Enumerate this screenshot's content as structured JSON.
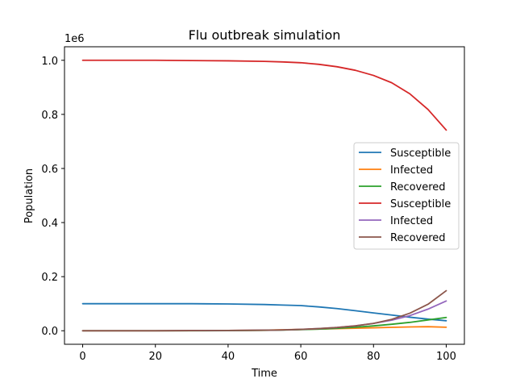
{
  "chart_data": {
    "type": "line",
    "title": "Flu outbreak simulation",
    "xlabel": "Time",
    "ylabel": "Population",
    "y_offset_label": "1e6",
    "xlim": [
      -5,
      105
    ],
    "ylim": [
      -0.05,
      1.05
    ],
    "x_scale_factor": 1,
    "y_scale_factor": 1000000,
    "x_ticks": [
      0,
      20,
      40,
      60,
      80,
      100
    ],
    "x_tick_labels": [
      "0",
      "20",
      "40",
      "60",
      "80",
      "100"
    ],
    "y_ticks": [
      0.0,
      0.2,
      0.4,
      0.6,
      0.8,
      1.0
    ],
    "y_tick_labels": [
      "0.0",
      "0.2",
      "0.4",
      "0.6",
      "0.8",
      "1.0"
    ],
    "grid": false,
    "legend_position": "center-right",
    "x": [
      0,
      10,
      20,
      30,
      40,
      50,
      55,
      60,
      65,
      70,
      75,
      80,
      85,
      90,
      95,
      100
    ],
    "series": [
      {
        "name": "Susceptible",
        "color": "#1f77b4",
        "values": [
          0.1,
          0.1,
          0.1,
          0.1,
          0.099,
          0.097,
          0.095,
          0.093,
          0.088,
          0.082,
          0.074,
          0.066,
          0.058,
          0.05,
          0.043,
          0.037
        ]
      },
      {
        "name": "Infected",
        "color": "#ff7f0e",
        "values": [
          0.0,
          0.0,
          0.0,
          0.0005,
          0.001,
          0.002,
          0.0035,
          0.005,
          0.0065,
          0.008,
          0.0095,
          0.011,
          0.0125,
          0.014,
          0.015,
          0.013
        ]
      },
      {
        "name": "Recovered",
        "color": "#2ca02c",
        "values": [
          0.0,
          0.0,
          0.0,
          0.0,
          0.0005,
          0.0015,
          0.0025,
          0.004,
          0.006,
          0.009,
          0.013,
          0.018,
          0.024,
          0.031,
          0.04,
          0.049
        ]
      },
      {
        "name": "Susceptible",
        "color": "#d62728",
        "values": [
          1.0,
          1.0,
          1.0,
          0.999,
          0.998,
          0.996,
          0.994,
          0.991,
          0.985,
          0.976,
          0.963,
          0.944,
          0.917,
          0.876,
          0.818,
          0.742
        ]
      },
      {
        "name": "Infected",
        "color": "#9467bd",
        "values": [
          0.0,
          0.0,
          0.0,
          0.0005,
          0.001,
          0.002,
          0.003,
          0.005,
          0.008,
          0.012,
          0.018,
          0.027,
          0.039,
          0.056,
          0.08,
          0.11
        ]
      },
      {
        "name": "Recovered",
        "color": "#8c564b",
        "values": [
          0.0,
          0.0,
          0.0,
          0.0005,
          0.001,
          0.002,
          0.003,
          0.005,
          0.008,
          0.012,
          0.018,
          0.027,
          0.042,
          0.065,
          0.098,
          0.148
        ]
      }
    ]
  }
}
